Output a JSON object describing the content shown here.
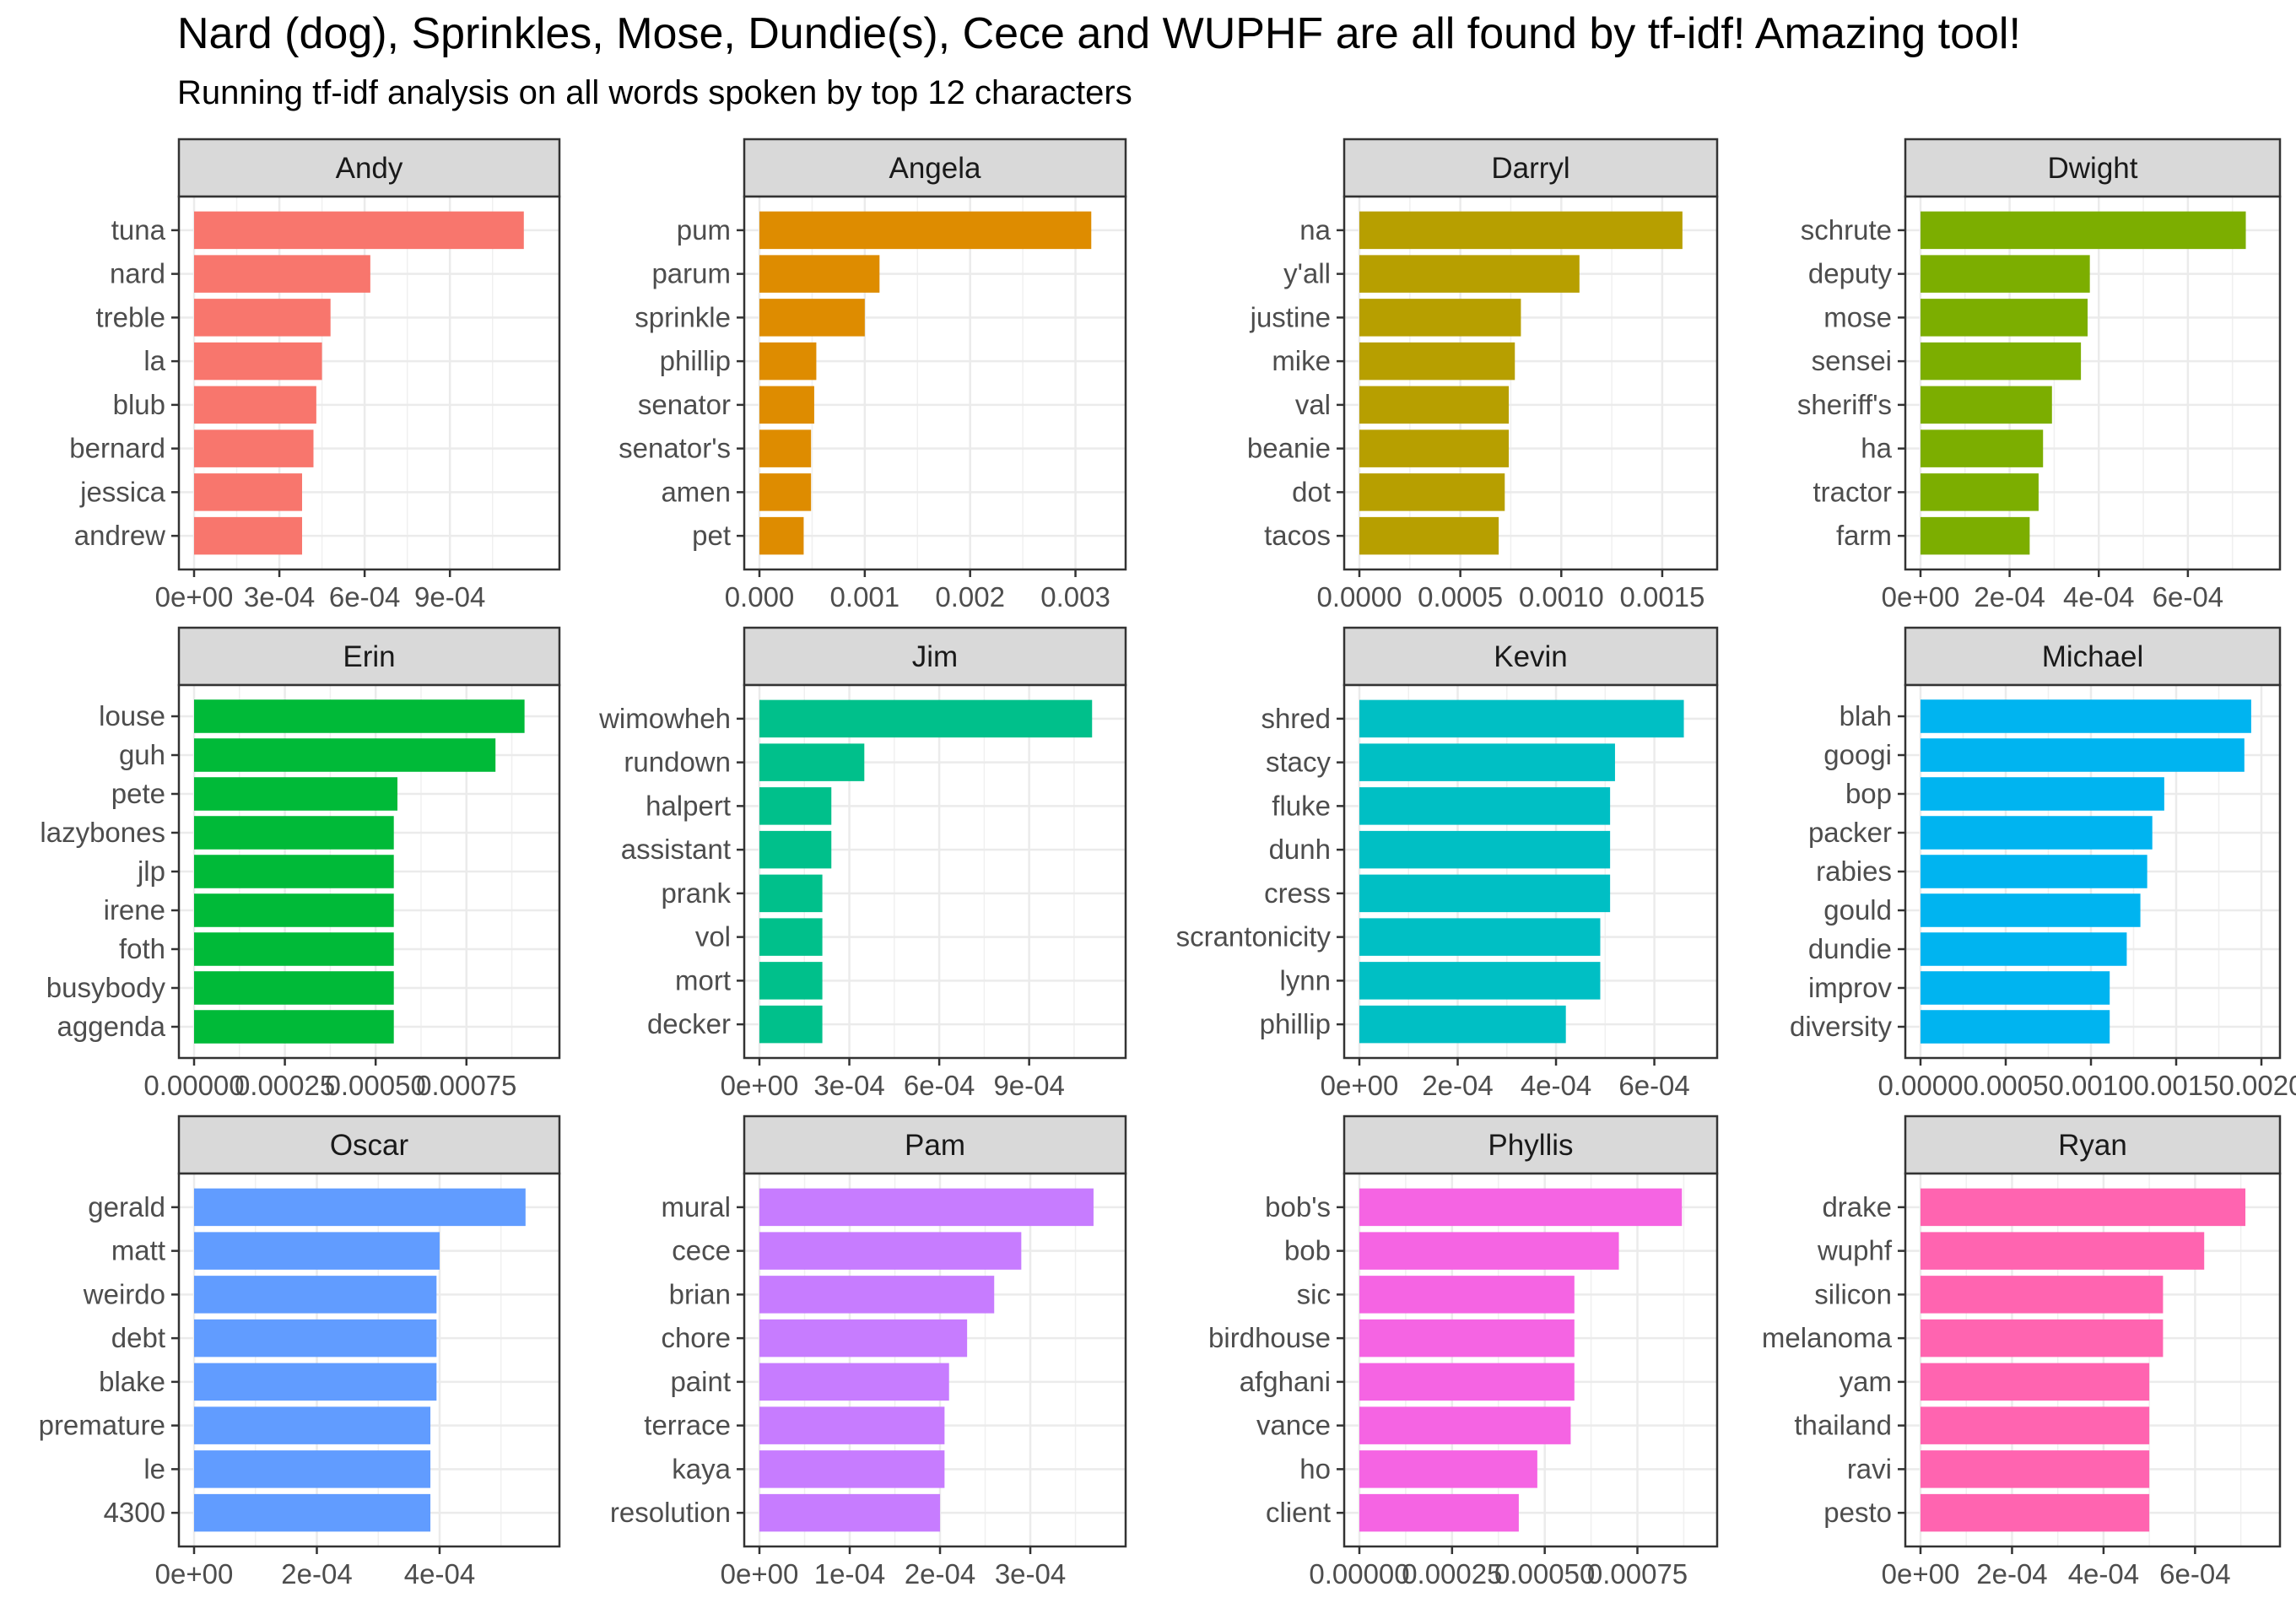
{
  "title": "Nard (dog), Sprinkles, Mose, Dundie(s), Cece and WUPHF are all found by tf-idf! Amazing tool!",
  "subtitle": "Running tf-idf analysis on all words spoken by top 12 characters",
  "chart_data": {
    "type": "bar",
    "orientation": "horizontal",
    "layout": "faceted 3x4, free scales",
    "grid": true,
    "legend": "none",
    "facets": [
      {
        "name": "Andy",
        "color": "#F8766D",
        "words": [
          "tuna",
          "nard",
          "treble",
          "la",
          "blub",
          "bernard",
          "jessica",
          "andrew"
        ],
        "values": [
          0.00116,
          0.00062,
          0.00048,
          0.00045,
          0.00043,
          0.00042,
          0.00038,
          0.00038
        ],
        "xticks": [
          0,
          0.0003,
          0.0006,
          0.0009
        ],
        "xtick_labels": [
          "0e+00",
          "3e-04",
          "6e-04",
          "9e-04"
        ],
        "xlim": [
          0,
          0.00122
        ]
      },
      {
        "name": "Angela",
        "color": "#DE8C00",
        "words": [
          "pum",
          "parum",
          "sprinkle",
          "phillip",
          "senator",
          "senator's",
          "amen",
          "pet"
        ],
        "values": [
          0.00315,
          0.00114,
          0.001,
          0.00054,
          0.00052,
          0.00049,
          0.00049,
          0.00042
        ],
        "xticks": [
          0,
          0.001,
          0.002,
          0.003
        ],
        "xtick_labels": [
          "0.000",
          "0.001",
          "0.002",
          "0.003"
        ],
        "xlim": [
          0,
          0.0033
        ]
      },
      {
        "name": "Darryl",
        "color": "#B79F00",
        "words": [
          "na",
          "y'all",
          "justine",
          "mike",
          "val",
          "beanie",
          "dot",
          "tacos"
        ],
        "values": [
          0.0016,
          0.00109,
          0.0008,
          0.00077,
          0.00074,
          0.00074,
          0.00072,
          0.00069
        ],
        "xticks": [
          0,
          0.0005,
          0.001,
          0.0015
        ],
        "xtick_labels": [
          "0.0000",
          "0.0005",
          "0.0010",
          "0.0015"
        ],
        "xlim": [
          0,
          0.00168
        ]
      },
      {
        "name": "Dwight",
        "color": "#7CAE00",
        "words": [
          "schrute",
          "deputy",
          "mose",
          "sensei",
          "sheriff's",
          "ha",
          "tractor",
          "farm"
        ],
        "values": [
          0.00073,
          0.00038,
          0.000375,
          0.00036,
          0.000295,
          0.000275,
          0.000265,
          0.000245
        ],
        "xticks": [
          0,
          0.0002,
          0.0004,
          0.0006
        ],
        "xtick_labels": [
          "0e+00",
          "2e-04",
          "4e-04",
          "6e-04"
        ],
        "xlim": [
          0,
          0.000765
        ]
      },
      {
        "name": "Erin",
        "color": "#00BA38",
        "words": [
          "louse",
          "guh",
          "pete",
          "lazybones",
          "jlp",
          "irene",
          "foth",
          "busybody",
          "aggenda"
        ],
        "values": [
          0.00091,
          0.00083,
          0.00056,
          0.00055,
          0.00055,
          0.00055,
          0.00055,
          0.00055,
          0.00055
        ],
        "xticks": [
          0,
          0.00025,
          0.0005,
          0.00075
        ],
        "xtick_labels": [
          "0.00000",
          "0.00025",
          "0.00050",
          "0.00075"
        ],
        "xlim": [
          0,
          0.000955
        ]
      },
      {
        "name": "Jim",
        "color": "#00C08B",
        "words": [
          "wimowheh",
          "rundown",
          "halpert",
          "assistant",
          "prank",
          "vol",
          "mort",
          "decker"
        ],
        "values": [
          0.00111,
          0.00035,
          0.00024,
          0.00024,
          0.00021,
          0.00021,
          0.00021,
          0.00021
        ],
        "xticks": [
          0,
          0.0003,
          0.0006,
          0.0009
        ],
        "xtick_labels": [
          "0e+00",
          "3e-04",
          "6e-04",
          "9e-04"
        ],
        "xlim": [
          0,
          0.00116
        ]
      },
      {
        "name": "Kevin",
        "color": "#00BFC4",
        "words": [
          "shred",
          "stacy",
          "fluke",
          "dunh",
          "cress",
          "scrantonicity",
          "lynn",
          "phillip"
        ],
        "values": [
          0.00066,
          0.00052,
          0.00051,
          0.00051,
          0.00051,
          0.00049,
          0.00049,
          0.00042
        ],
        "xticks": [
          0,
          0.0002,
          0.0004,
          0.0006
        ],
        "xtick_labels": [
          "0e+00",
          "2e-04",
          "4e-04",
          "6e-04"
        ],
        "xlim": [
          0,
          0.00069
        ]
      },
      {
        "name": "Michael",
        "color": "#00B4F0",
        "words": [
          "blah",
          "googi",
          "bop",
          "packer",
          "rabies",
          "gould",
          "dundie",
          "improv",
          "diversity"
        ],
        "values": [
          0.00194,
          0.0019,
          0.00143,
          0.00136,
          0.00133,
          0.00129,
          0.00121,
          0.00111,
          0.00111
        ],
        "xticks": [
          0,
          0.0005,
          0.001,
          0.0015,
          0.002
        ],
        "xtick_labels": [
          "0.0000",
          "0.0005",
          "0.0010",
          "0.0015",
          "0.0020"
        ],
        "xlim": [
          0,
          0.002
        ]
      },
      {
        "name": "Oscar",
        "color": "#619CFF",
        "words": [
          "gerald",
          "matt",
          "weirdo",
          "debt",
          "blake",
          "premature",
          "le",
          "4300"
        ],
        "values": [
          0.00054,
          0.0004,
          0.000395,
          0.000395,
          0.000395,
          0.000385,
          0.000385,
          0.000385
        ],
        "xticks": [
          0,
          0.0002,
          0.0004
        ],
        "xtick_labels": [
          "0e+00",
          "2e-04",
          "4e-04"
        ],
        "xlim": [
          0,
          0.000565
        ]
      },
      {
        "name": "Pam",
        "color": "#C77CFF",
        "words": [
          "mural",
          "cece",
          "brian",
          "chore",
          "paint",
          "terrace",
          "kaya",
          "resolution"
        ],
        "values": [
          0.00037,
          0.00029,
          0.00026,
          0.00023,
          0.00021,
          0.000205,
          0.000205,
          0.0002
        ],
        "xticks": [
          0,
          0.0001,
          0.0002,
          0.0003
        ],
        "xtick_labels": [
          "0e+00",
          "1e-04",
          "2e-04",
          "3e-04"
        ],
        "xlim": [
          0,
          0.000385
        ]
      },
      {
        "name": "Phyllis",
        "color": "#F564E3",
        "words": [
          "bob's",
          "bob",
          "sic",
          "birdhouse",
          "afghani",
          "vance",
          "ho",
          "client"
        ],
        "values": [
          0.00087,
          0.0007,
          0.00058,
          0.00058,
          0.00058,
          0.00057,
          0.00048,
          0.00043
        ],
        "xticks": [
          0,
          0.00025,
          0.0005,
          0.00075
        ],
        "xtick_labels": [
          "0.00000",
          "0.00025",
          "0.00050",
          "0.00075"
        ],
        "xlim": [
          0,
          0.000915
        ]
      },
      {
        "name": "Ryan",
        "color": "#FF64B0",
        "words": [
          "drake",
          "wuphf",
          "silicon",
          "melanoma",
          "yam",
          "thailand",
          "ravi",
          "pesto"
        ],
        "values": [
          0.00071,
          0.00062,
          0.00053,
          0.00053,
          0.0005,
          0.0005,
          0.0005,
          0.0005
        ],
        "xticks": [
          0,
          0.0002,
          0.0004,
          0.0006
        ],
        "xtick_labels": [
          "0e+00",
          "2e-04",
          "4e-04",
          "6e-04"
        ],
        "xlim": [
          0,
          0.000745
        ]
      }
    ]
  }
}
